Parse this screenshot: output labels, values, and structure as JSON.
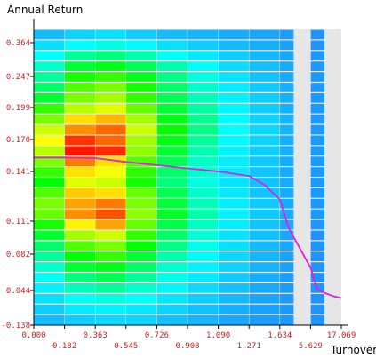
{
  "chart_data": {
    "type": "heatmap",
    "title": "",
    "xlabel": "Turnover",
    "ylabel": "Annual Return",
    "x_ticks": [
      "0.000",
      "0.182",
      "0.363",
      "0.545",
      "0.726",
      "0.908",
      "1.090",
      "1.271",
      "1.634",
      "5.629",
      "17.069"
    ],
    "y_ticks": [
      "0.364",
      "0.247",
      "0.199",
      "0.170",
      "0.141",
      "0.111",
      "0.082",
      "0.044",
      "-0.138"
    ],
    "x_bin_edges": [
      0.0,
      0.182,
      0.363,
      0.545,
      0.726,
      0.908,
      1.09,
      1.271,
      1.634,
      5.629,
      17.069
    ],
    "y_bin_edges": [
      -0.138,
      0.044,
      0.082,
      0.111,
      0.141,
      0.17,
      0.199,
      0.247,
      0.364
    ],
    "color_scale": {
      "low": "#1e90ff",
      "mid_low": "#00ffff",
      "mid": "#00ff00",
      "mid_high": "#ffff00",
      "high": "#ff0000"
    },
    "background_color": "#e6e6e6",
    "grid": true,
    "density_rows": [
      [
        0.1,
        0.15,
        0.18,
        0.14,
        0.1,
        0.08,
        0.06,
        0.05,
        0.03,
        0.01
      ],
      [
        0.18,
        0.25,
        0.28,
        0.24,
        0.18,
        0.14,
        0.1,
        0.07,
        0.04,
        0.01
      ],
      [
        0.25,
        0.35,
        0.38,
        0.33,
        0.26,
        0.2,
        0.14,
        0.09,
        0.05,
        0.02
      ],
      [
        0.3,
        0.45,
        0.48,
        0.42,
        0.33,
        0.25,
        0.17,
        0.11,
        0.06,
        0.02
      ],
      [
        0.35,
        0.52,
        0.55,
        0.48,
        0.37,
        0.28,
        0.19,
        0.12,
        0.06,
        0.02
      ],
      [
        0.4,
        0.58,
        0.62,
        0.52,
        0.4,
        0.3,
        0.21,
        0.13,
        0.07,
        0.02
      ],
      [
        0.45,
        0.62,
        0.66,
        0.55,
        0.42,
        0.32,
        0.22,
        0.14,
        0.07,
        0.02
      ],
      [
        0.55,
        0.68,
        0.72,
        0.6,
        0.45,
        0.34,
        0.23,
        0.14,
        0.07,
        0.02
      ],
      [
        0.62,
        0.78,
        0.82,
        0.66,
        0.48,
        0.36,
        0.24,
        0.15,
        0.08,
        0.02
      ],
      [
        0.7,
        0.86,
        0.9,
        0.7,
        0.5,
        0.37,
        0.25,
        0.16,
        0.08,
        0.02
      ],
      [
        0.75,
        0.95,
        0.9,
        0.66,
        0.48,
        0.35,
        0.24,
        0.15,
        0.07,
        0.02
      ],
      [
        0.68,
        0.98,
        0.96,
        0.64,
        0.45,
        0.33,
        0.22,
        0.14,
        0.07,
        0.02
      ],
      [
        0.62,
        0.88,
        0.78,
        0.58,
        0.42,
        0.31,
        0.21,
        0.13,
        0.06,
        0.02
      ],
      [
        0.55,
        0.78,
        0.74,
        0.54,
        0.4,
        0.3,
        0.2,
        0.12,
        0.06,
        0.02
      ],
      [
        0.5,
        0.72,
        0.7,
        0.52,
        0.38,
        0.28,
        0.19,
        0.12,
        0.06,
        0.02
      ],
      [
        0.58,
        0.8,
        0.78,
        0.6,
        0.42,
        0.3,
        0.2,
        0.12,
        0.06,
        0.02
      ],
      [
        0.62,
        0.84,
        0.88,
        0.62,
        0.44,
        0.32,
        0.21,
        0.13,
        0.06,
        0.02
      ],
      [
        0.6,
        0.86,
        0.92,
        0.64,
        0.46,
        0.33,
        0.22,
        0.13,
        0.06,
        0.02
      ],
      [
        0.52,
        0.76,
        0.84,
        0.6,
        0.43,
        0.31,
        0.21,
        0.12,
        0.06,
        0.02
      ],
      [
        0.45,
        0.66,
        0.7,
        0.55,
        0.4,
        0.29,
        0.19,
        0.11,
        0.05,
        0.01
      ],
      [
        0.4,
        0.58,
        0.62,
        0.5,
        0.37,
        0.27,
        0.18,
        0.1,
        0.05,
        0.01
      ],
      [
        0.35,
        0.5,
        0.55,
        0.45,
        0.33,
        0.24,
        0.16,
        0.09,
        0.04,
        0.01
      ],
      [
        0.3,
        0.45,
        0.48,
        0.4,
        0.3,
        0.22,
        0.15,
        0.08,
        0.04,
        0.01
      ],
      [
        0.26,
        0.38,
        0.42,
        0.35,
        0.27,
        0.2,
        0.13,
        0.07,
        0.03,
        0.01
      ],
      [
        0.22,
        0.32,
        0.35,
        0.3,
        0.23,
        0.17,
        0.11,
        0.06,
        0.03,
        0.01
      ],
      [
        0.18,
        0.26,
        0.28,
        0.25,
        0.19,
        0.14,
        0.09,
        0.05,
        0.02,
        0.01
      ],
      [
        0.14,
        0.2,
        0.22,
        0.2,
        0.15,
        0.11,
        0.07,
        0.04,
        0.02,
        0.01
      ],
      [
        0.1,
        0.14,
        0.16,
        0.15,
        0.11,
        0.08,
        0.05,
        0.03,
        0.02,
        0.01
      ]
    ],
    "mean_line": {
      "color": "#e020e0",
      "points": [
        [
          0.0,
          0.1565
        ],
        [
          0.182,
          0.1565
        ],
        [
          0.363,
          0.156
        ],
        [
          0.545,
          0.153
        ],
        [
          0.726,
          0.1505
        ],
        [
          0.908,
          0.148
        ],
        [
          1.09,
          0.1455
        ],
        [
          1.271,
          0.142
        ],
        [
          1.45,
          0.135
        ],
        [
          1.634,
          0.123
        ],
        [
          2.8,
          0.1
        ],
        [
          5.629,
          0.065
        ],
        [
          8.0,
          0.04
        ],
        [
          11.0,
          0.02
        ],
        [
          14.0,
          0.005
        ],
        [
          17.069,
          -0.005
        ]
      ]
    }
  }
}
